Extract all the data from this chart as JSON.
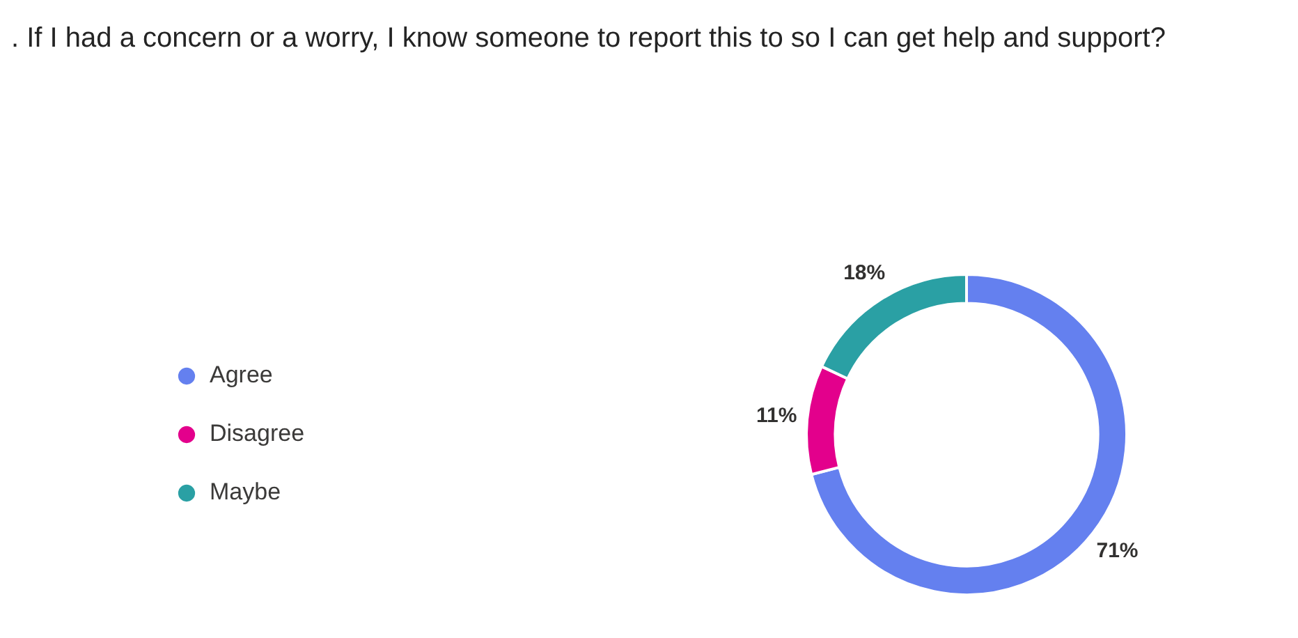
{
  "chart_data": {
    "type": "donut",
    "title": ". If I had a concern or a worry, I know someone to report this to so I can get help and support?",
    "categories": [
      "Agree",
      "Disagree",
      "Maybe"
    ],
    "values": [
      71,
      11,
      18
    ],
    "colors": [
      "#6480ef",
      "#e3008c",
      "#2aa0a4"
    ],
    "value_labels": [
      "71%",
      "11%",
      "18%"
    ],
    "legend": "left"
  }
}
